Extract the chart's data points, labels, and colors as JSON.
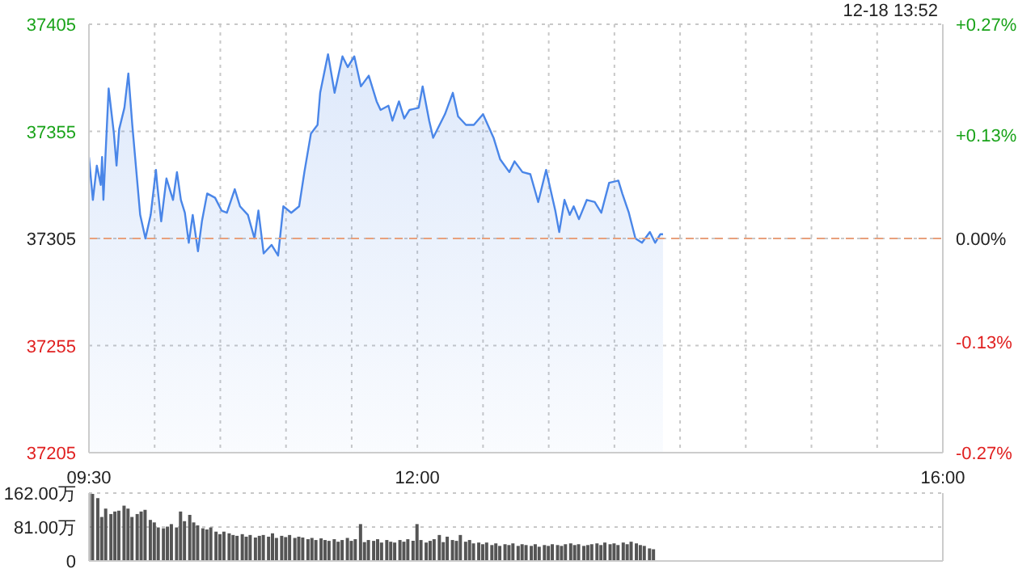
{
  "chart_data": [
    {
      "type": "area",
      "subtitle": "12-18 13:52",
      "x": [
        9.5,
        9.53,
        9.56,
        9.59,
        9.6,
        9.61,
        9.65,
        9.69,
        9.71,
        9.73,
        9.77,
        9.8,
        9.83,
        9.89,
        9.93,
        9.97,
        10.01,
        10.02,
        10.05,
        10.09,
        10.14,
        10.17,
        10.2,
        10.23,
        10.26,
        10.29,
        10.33,
        10.36,
        10.4,
        10.46,
        10.51,
        10.55,
        10.61,
        10.65,
        10.71,
        10.76,
        10.79,
        10.83,
        10.89,
        10.94,
        10.98,
        11.04,
        11.1,
        11.14,
        11.19,
        11.24,
        11.26,
        11.32,
        11.37,
        11.43,
        11.47,
        11.52,
        11.57,
        11.63,
        11.69,
        11.72,
        11.78,
        11.81,
        11.86,
        11.9,
        11.94,
        12.01,
        12.04,
        12.09,
        12.12,
        12.21,
        12.27,
        12.31,
        12.37,
        12.43,
        12.5,
        12.58,
        12.63,
        12.7,
        12.74,
        12.8,
        12.86,
        12.92,
        12.98,
        13.05,
        13.08,
        13.12,
        13.16,
        13.19,
        13.23,
        13.29,
        13.35,
        13.4,
        13.46,
        13.53,
        13.56,
        13.61,
        13.66,
        13.71,
        13.77,
        13.81,
        13.85,
        13.87
      ],
      "series": [
        {
          "color": "#4a86e8",
          "values": [
            37343,
            37323,
            37339,
            37330,
            37343,
            37323,
            37375,
            37354,
            37339,
            37356,
            37366,
            37382,
            37358,
            37316,
            37305,
            37316,
            37337,
            37330,
            37313,
            37333,
            37323,
            37336,
            37323,
            37317,
            37303,
            37316,
            37299,
            37313,
            37326,
            37324,
            37318,
            37317,
            37328,
            37320,
            37316,
            37305,
            37318,
            37298,
            37302,
            37297,
            37320,
            37317,
            37320,
            37336,
            37354,
            37358,
            37373,
            37391,
            37373,
            37390,
            37385,
            37390,
            37376,
            37381,
            37369,
            37365,
            37367,
            37360,
            37369,
            37361,
            37365,
            37366,
            37376,
            37360,
            37352,
            37363,
            37373,
            37362,
            37358,
            37358,
            37363,
            37352,
            37342,
            37336,
            37341,
            37336,
            37335,
            37322,
            37337,
            37318,
            37308,
            37323,
            37316,
            37320,
            37314,
            37323,
            37322,
            37317,
            37331,
            37332,
            37326,
            37317,
            37305,
            37303,
            37308,
            37303,
            37307,
            37307
          ]
        }
      ],
      "xlim": [
        9.5,
        16
      ],
      "xticks": [
        {
          "value": 9.5,
          "label": "09:30"
        },
        {
          "value": 10,
          "label": null
        },
        {
          "value": 10.5,
          "label": null
        },
        {
          "value": 11,
          "label": null
        },
        {
          "value": 11.5,
          "label": null
        },
        {
          "value": 12,
          "label": "12:00"
        },
        {
          "value": 12.5,
          "label": null
        },
        {
          "value": 13,
          "label": null
        },
        {
          "value": 13.5,
          "label": null
        },
        {
          "value": 14,
          "label": null
        },
        {
          "value": 14.5,
          "label": null
        },
        {
          "value": 15,
          "label": null
        },
        {
          "value": 15.5,
          "label": null
        },
        {
          "value": 16,
          "label": "16:00"
        }
      ],
      "ylim": [
        37205,
        37405
      ],
      "yticks": [
        37205,
        37255,
        37305,
        37355,
        37405
      ],
      "y2lim": [
        -0.27,
        0.27
      ],
      "y2ticks": [
        {
          "value": -0.27,
          "label": "-0.27%"
        },
        {
          "value": -0.13,
          "label": "-0.13%"
        },
        {
          "value": 0,
          "label": "0.00%"
        },
        {
          "value": 0.13,
          "label": "+0.13%"
        },
        {
          "value": 0.27,
          "label": "+0.27%"
        }
      ],
      "ref_lines": [
        {
          "axis": "y",
          "value": 37305,
          "color": "#e8a07c",
          "line_style": "dashed"
        }
      ],
      "grid": true,
      "marker": "none"
    },
    {
      "type": "bar",
      "x": [
        9.5,
        9.53,
        9.57,
        9.6,
        9.63,
        9.67,
        9.7,
        9.73,
        9.77,
        9.8,
        9.83,
        9.87,
        9.9,
        9.93,
        9.97,
        10,
        10.03,
        10.07,
        10.1,
        10.13,
        10.17,
        10.2,
        10.23,
        10.27,
        10.3,
        10.33,
        10.37,
        10.4,
        10.43,
        10.47,
        10.5,
        10.53,
        10.57,
        10.6,
        10.63,
        10.67,
        10.7,
        10.73,
        10.77,
        10.8,
        10.83,
        10.87,
        10.9,
        10.93,
        10.97,
        11,
        11.03,
        11.07,
        11.1,
        11.13,
        11.17,
        11.2,
        11.23,
        11.27,
        11.3,
        11.33,
        11.37,
        11.4,
        11.43,
        11.47,
        11.5,
        11.53,
        11.57,
        11.6,
        11.63,
        11.67,
        11.7,
        11.73,
        11.77,
        11.8,
        11.83,
        11.87,
        11.9,
        11.93,
        11.97,
        12,
        12.03,
        12.07,
        12.1,
        12.13,
        12.17,
        12.2,
        12.23,
        12.27,
        12.3,
        12.33,
        12.37,
        12.4,
        12.43,
        12.47,
        12.5,
        12.53,
        12.57,
        12.6,
        12.63,
        12.67,
        12.7,
        12.73,
        12.77,
        12.8,
        12.83,
        12.87,
        12.9,
        12.93,
        12.97,
        13,
        13.03,
        13.07,
        13.1,
        13.13,
        13.17,
        13.2,
        13.23,
        13.27,
        13.3,
        13.33,
        13.37,
        13.4,
        13.43,
        13.47,
        13.5,
        13.53,
        13.57,
        13.6,
        13.63,
        13.67,
        13.7,
        13.73,
        13.77,
        13.8
      ],
      "series": [
        {
          "color": "#555555",
          "values": [
            160,
            160,
            150,
            105,
            125,
            112,
            118,
            120,
            132,
            125,
            105,
            112,
            118,
            122,
            98,
            92,
            80,
            78,
            82,
            88,
            80,
            118,
            95,
            110,
            92,
            85,
            78,
            75,
            80,
            70,
            64,
            70,
            66,
            62,
            60,
            64,
            58,
            62,
            56,
            60,
            62,
            58,
            66,
            55,
            60,
            57,
            62,
            55,
            58,
            56,
            52,
            55,
            50,
            54,
            50,
            48,
            52,
            46,
            50,
            55,
            48,
            52,
            88,
            45,
            50,
            48,
            52,
            44,
            50,
            46,
            44,
            50,
            46,
            52,
            48,
            88,
            50,
            44,
            48,
            52,
            62,
            45,
            58,
            50,
            48,
            62,
            46,
            50,
            42,
            44,
            40,
            44,
            38,
            42,
            36,
            40,
            38,
            42,
            36,
            40,
            38,
            36,
            40,
            34,
            38,
            36,
            40,
            38,
            36,
            40,
            42,
            38,
            40,
            36,
            38,
            40,
            42,
            38,
            44,
            40,
            42,
            38,
            44,
            40,
            46,
            42,
            38,
            36,
            30,
            28
          ]
        }
      ],
      "xlim": [
        9.5,
        16
      ],
      "ylim": [
        0,
        162
      ],
      "yticks": [
        {
          "value": 0,
          "label": "0"
        },
        {
          "value": 81,
          "label": "81.00万"
        },
        {
          "value": 162,
          "label": "162.00万"
        }
      ],
      "grid": "y",
      "tick_labels": "y"
    }
  ]
}
